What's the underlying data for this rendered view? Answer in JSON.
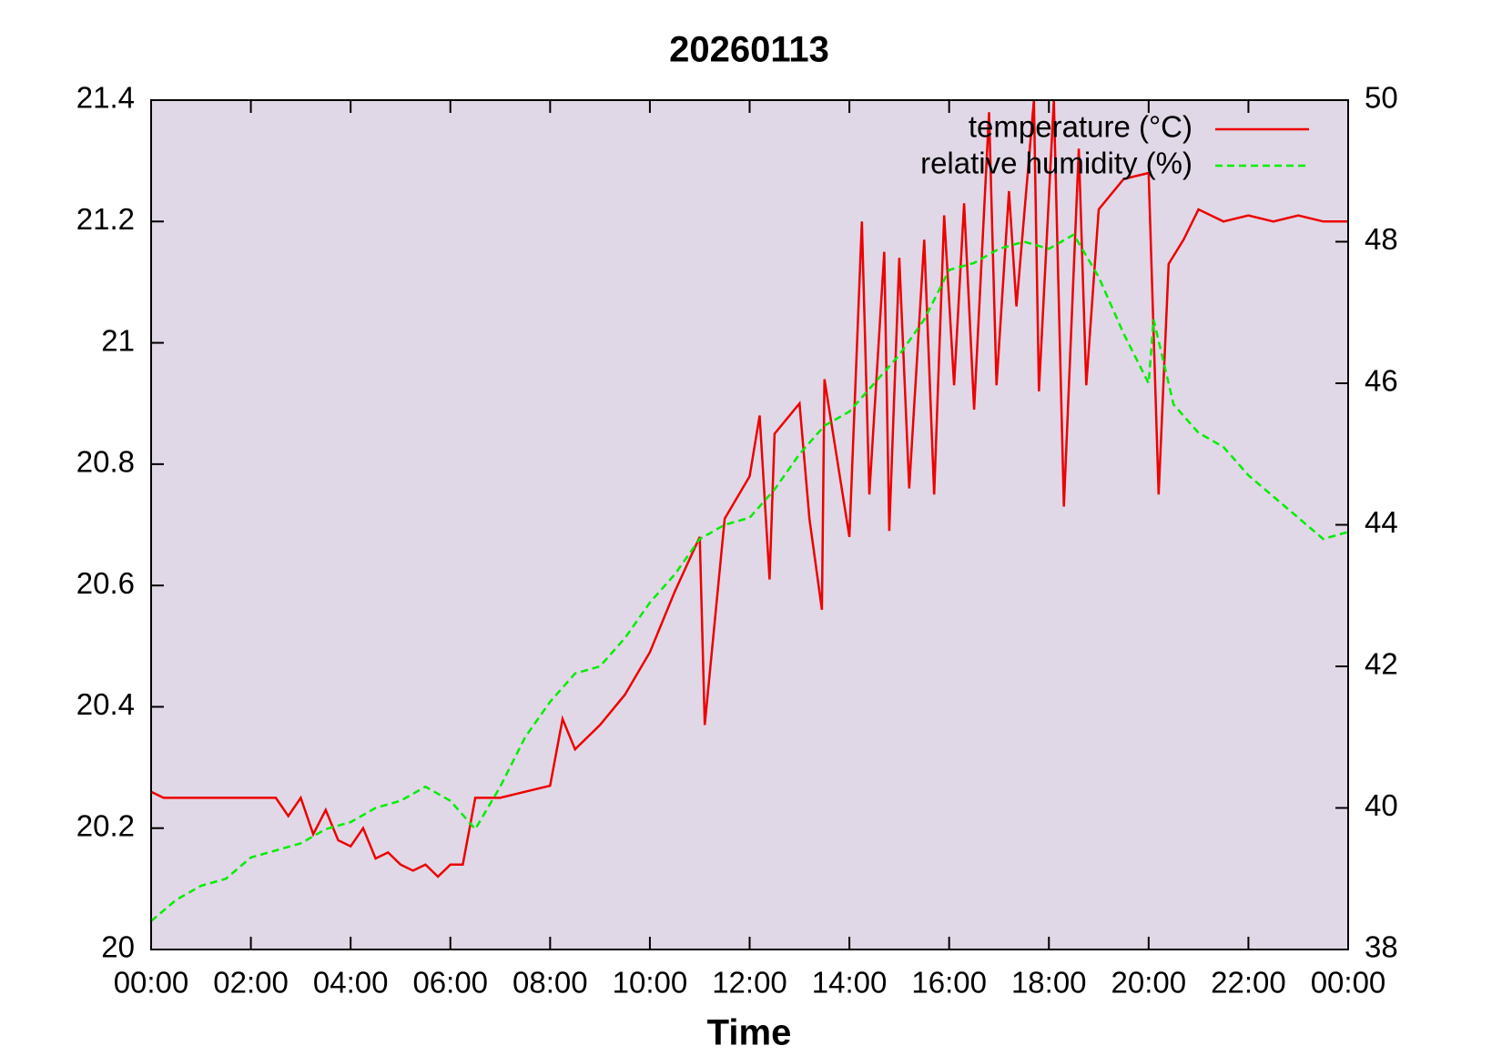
{
  "chart_data": {
    "type": "line",
    "title": "20260113",
    "x_label": "Time",
    "xlim": [
      0,
      24
    ],
    "xticks": [
      {
        "value": 0,
        "label": "00:00"
      },
      {
        "value": 2,
        "label": "02:00"
      },
      {
        "value": 4,
        "label": "04:00"
      },
      {
        "value": 6,
        "label": "06:00"
      },
      {
        "value": 8,
        "label": "08:00"
      },
      {
        "value": 10,
        "label": "10:00"
      },
      {
        "value": 12,
        "label": "12:00"
      },
      {
        "value": 14,
        "label": "14:00"
      },
      {
        "value": 16,
        "label": "16:00"
      },
      {
        "value": 18,
        "label": "18:00"
      },
      {
        "value": 20,
        "label": "20:00"
      },
      {
        "value": 22,
        "label": "22:00"
      },
      {
        "value": 24,
        "label": "00:00"
      }
    ],
    "ylim": [
      20,
      21.4
    ],
    "yticks": [
      20,
      20.2,
      20.4,
      20.6,
      20.8,
      21,
      21.2,
      21.4
    ],
    "y2lim": [
      38,
      50
    ],
    "y2ticks": [
      38,
      40,
      42,
      44,
      46,
      48,
      50
    ],
    "legend": "upper right",
    "series": [
      {
        "name": "temperature (°C)",
        "color": "#ee0000",
        "dash": false,
        "x": [
          0,
          0.25,
          2.5,
          2.75,
          3.0,
          3.25,
          3.5,
          3.75,
          4.0,
          4.25,
          4.5,
          4.75,
          5.0,
          5.25,
          5.5,
          5.75,
          6.0,
          6.25,
          6.5,
          7.0,
          7.5,
          8.0,
          8.25,
          8.5,
          9.0,
          9.5,
          10.0,
          10.5,
          11.0,
          11.1,
          11.5,
          12.0,
          12.2,
          12.4,
          12.5,
          13.0,
          13.2,
          13.45,
          13.5,
          14.0,
          14.25,
          14.4,
          14.7,
          14.8,
          15.0,
          15.2,
          15.5,
          15.7,
          15.9,
          16.1,
          16.3,
          16.5,
          16.8,
          16.95,
          17.2,
          17.35,
          17.7,
          17.8,
          18.1,
          18.3,
          18.6,
          18.75,
          19.0,
          19.5,
          20.0,
          20.2,
          20.4,
          20.7,
          21.0,
          21.5,
          22.0,
          22.5,
          23.0,
          23.5,
          24.0
        ],
        "values": [
          20.26,
          20.25,
          20.25,
          20.22,
          20.25,
          20.19,
          20.23,
          20.18,
          20.17,
          20.2,
          20.15,
          20.16,
          20.14,
          20.13,
          20.14,
          20.12,
          20.14,
          20.14,
          20.25,
          20.25,
          20.26,
          20.27,
          20.38,
          20.33,
          20.37,
          20.42,
          20.49,
          20.59,
          20.68,
          20.37,
          20.71,
          20.78,
          20.88,
          20.61,
          20.85,
          20.9,
          20.71,
          20.56,
          20.94,
          20.68,
          21.2,
          20.75,
          21.15,
          20.69,
          21.14,
          20.76,
          21.17,
          20.75,
          21.21,
          20.93,
          21.23,
          20.89,
          21.38,
          20.93,
          21.25,
          21.06,
          21.4,
          20.92,
          21.4,
          20.73,
          21.32,
          20.93,
          21.22,
          21.27,
          21.28,
          20.75,
          21.13,
          21.17,
          21.22,
          21.2,
          21.21,
          21.2,
          21.21,
          21.2,
          21.2
        ]
      },
      {
        "name": "relative humidity (%)",
        "color": "#00ee00",
        "dash": true,
        "axis": "y2",
        "x": [
          0,
          0.5,
          1,
          1.5,
          2,
          2.5,
          3,
          3.5,
          4,
          4.5,
          5,
          5.5,
          6,
          6.5,
          7,
          7.5,
          8,
          8.5,
          9,
          9.5,
          10,
          10.5,
          11,
          11.5,
          12,
          12.5,
          13,
          13.5,
          14,
          14.5,
          15,
          15.5,
          16,
          16.5,
          17,
          17.5,
          18,
          18.5,
          19,
          19.5,
          20,
          20.1,
          20.5,
          21,
          21.5,
          22,
          22.5,
          23,
          23.5,
          24
        ],
        "values": [
          38.4,
          38.7,
          38.9,
          39.0,
          39.3,
          39.4,
          39.5,
          39.7,
          39.8,
          40.0,
          40.1,
          40.3,
          40.1,
          39.7,
          40.3,
          41.0,
          41.5,
          41.9,
          42.0,
          42.4,
          42.9,
          43.3,
          43.8,
          44.0,
          44.1,
          44.5,
          45.0,
          45.4,
          45.6,
          46.0,
          46.4,
          46.9,
          47.6,
          47.7,
          47.9,
          48.0,
          47.9,
          48.1,
          47.5,
          46.7,
          46.0,
          46.9,
          45.7,
          45.3,
          45.1,
          44.7,
          44.4,
          44.1,
          43.8,
          43.9
        ]
      }
    ]
  }
}
